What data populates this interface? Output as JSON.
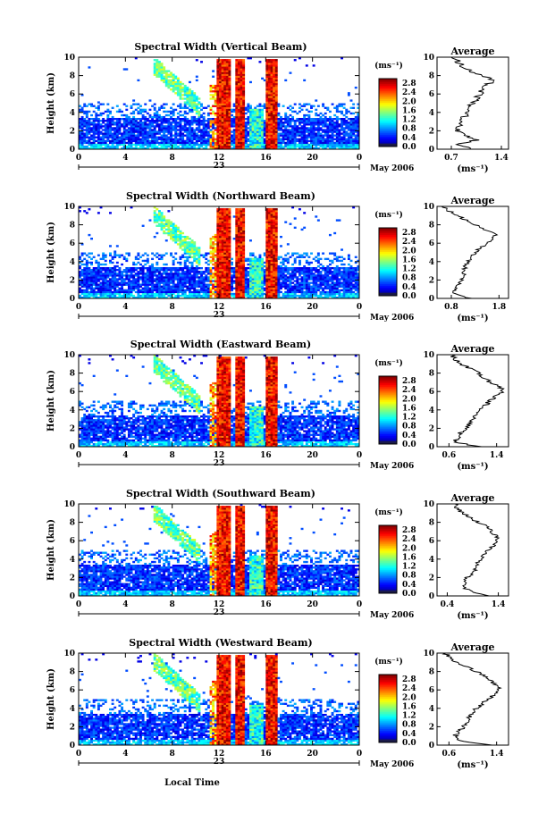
{
  "figure": {
    "xlabel": "Local Time",
    "date_label": "May 2006",
    "day_label": "23",
    "colorbar_unit": "(ms⁻¹)",
    "avg_unit": "(ms⁻¹)",
    "ylabel": "Height (km)"
  },
  "chart_data": [
    {
      "type": "heatmap",
      "title": "Spectral Width (Vertical Beam)",
      "avg_title": "Average",
      "x_ticks": [
        "0",
        "4",
        "8",
        "12",
        "16",
        "20",
        "0"
      ],
      "y_ticks": [
        "0",
        "2",
        "4",
        "6",
        "8",
        "10"
      ],
      "xlim": [
        0,
        24
      ],
      "ylim": [
        0,
        10
      ],
      "colorbar_ticks": [
        "0.0",
        "0.4",
        "0.8",
        "1.2",
        "1.6",
        "2.0",
        "2.4",
        "2.8"
      ],
      "clim": [
        0,
        3.0
      ],
      "avg_xticks": [
        "0.7",
        "1.4"
      ],
      "avg_xlim": [
        0.5,
        1.5
      ],
      "avg_profile": {
        "height": [
          0,
          0.5,
          1,
          1.5,
          2,
          2.5,
          3,
          3.5,
          4,
          4.5,
          5,
          5.5,
          6,
          6.5,
          7,
          7.5,
          8,
          8.5,
          9,
          9.5,
          10
        ],
        "value": [
          1.0,
          0.75,
          1.05,
          0.9,
          0.78,
          0.8,
          0.85,
          0.88,
          0.92,
          0.95,
          1.0,
          1.05,
          1.1,
          1.15,
          1.2,
          1.3,
          1.15,
          0.95,
          0.85,
          0.8,
          0.7
        ]
      }
    },
    {
      "type": "heatmap",
      "title": "Spectral Width (Northward Beam)",
      "avg_title": "Average",
      "x_ticks": [
        "0",
        "4",
        "8",
        "12",
        "16",
        "20",
        "0"
      ],
      "y_ticks": [
        "0",
        "2",
        "4",
        "6",
        "8",
        "10"
      ],
      "xlim": [
        0,
        24
      ],
      "ylim": [
        0,
        10
      ],
      "colorbar_ticks": [
        "0.0",
        "0.4",
        "0.8",
        "1.2",
        "1.6",
        "2.0",
        "2.4",
        "2.8"
      ],
      "clim": [
        0,
        3.0
      ],
      "avg_xticks": [
        "0.8",
        "1.8"
      ],
      "avg_xlim": [
        0.5,
        2.0
      ],
      "avg_profile": {
        "height": [
          0,
          0.5,
          1,
          1.5,
          2,
          2.5,
          3,
          3.5,
          4,
          4.5,
          5,
          5.5,
          6,
          6.5,
          7,
          7.5,
          8,
          8.5,
          9,
          9.5,
          10
        ],
        "value": [
          1.2,
          0.85,
          0.9,
          0.95,
          1.0,
          1.05,
          1.05,
          1.1,
          1.15,
          1.2,
          1.3,
          1.4,
          1.55,
          1.65,
          1.75,
          1.5,
          1.3,
          1.1,
          0.95,
          0.75,
          0.6
        ]
      }
    },
    {
      "type": "heatmap",
      "title": "Spectral Width (Eastward Beam)",
      "avg_title": "Average",
      "x_ticks": [
        "0",
        "4",
        "8",
        "12",
        "16",
        "20",
        "0"
      ],
      "y_ticks": [
        "0",
        "2",
        "4",
        "6",
        "8",
        "10"
      ],
      "xlim": [
        0,
        24
      ],
      "ylim": [
        0,
        10
      ],
      "colorbar_ticks": [
        "0.0",
        "0.4",
        "0.8",
        "1.2",
        "1.6",
        "2.0",
        "2.4",
        "2.8"
      ],
      "clim": [
        0,
        3.0
      ],
      "avg_xticks": [
        "0.6",
        "1.4"
      ],
      "avg_xlim": [
        0.4,
        1.6
      ],
      "avg_profile": {
        "height": [
          0,
          0.5,
          1,
          1.5,
          2,
          2.5,
          3,
          3.5,
          4,
          4.5,
          5,
          5.5,
          6,
          6.5,
          7,
          7.5,
          8,
          8.5,
          9,
          9.5,
          10
        ],
        "value": [
          1.1,
          0.7,
          0.75,
          0.8,
          0.88,
          0.95,
          1.0,
          1.05,
          1.1,
          1.2,
          1.3,
          1.4,
          1.5,
          1.45,
          1.3,
          1.2,
          1.1,
          0.95,
          0.8,
          0.7,
          0.65
        ]
      }
    },
    {
      "type": "heatmap",
      "title": "Spectral Width (Southward Beam)",
      "avg_title": "Average",
      "x_ticks": [
        "0",
        "4",
        "8",
        "12",
        "16",
        "20",
        "0"
      ],
      "y_ticks": [
        "0",
        "2",
        "4",
        "6",
        "8",
        "10"
      ],
      "xlim": [
        0,
        24
      ],
      "ylim": [
        0,
        10
      ],
      "colorbar_ticks": [
        "0.0",
        "0.4",
        "0.8",
        "1.2",
        "1.6",
        "2.0",
        "2.4",
        "2.8"
      ],
      "clim": [
        0,
        3.0
      ],
      "avg_xticks": [
        "0.4",
        "1.4"
      ],
      "avg_xlim": [
        0.2,
        1.6
      ],
      "avg_profile": {
        "height": [
          0,
          0.5,
          1,
          1.5,
          2,
          2.5,
          3,
          3.5,
          4,
          4.5,
          5,
          5.5,
          6,
          6.5,
          7,
          7.5,
          8,
          8.5,
          9,
          9.5,
          10
        ],
        "value": [
          1.2,
          0.85,
          0.7,
          0.75,
          0.8,
          0.9,
          0.95,
          1.0,
          1.05,
          1.1,
          1.2,
          1.3,
          1.4,
          1.35,
          1.25,
          1.2,
          1.0,
          0.85,
          0.7,
          0.6,
          0.55
        ]
      }
    },
    {
      "type": "heatmap",
      "title": "Spectral Width (Westward Beam)",
      "avg_title": "Average",
      "x_ticks": [
        "0",
        "4",
        "8",
        "12",
        "16",
        "20",
        "0"
      ],
      "y_ticks": [
        "0",
        "2",
        "4",
        "6",
        "8",
        "10"
      ],
      "xlim": [
        0,
        24
      ],
      "ylim": [
        0,
        10
      ],
      "colorbar_ticks": [
        "0.0",
        "0.4",
        "0.8",
        "1.2",
        "1.6",
        "2.0",
        "2.4",
        "2.8"
      ],
      "clim": [
        0,
        3.0
      ],
      "avg_xticks": [
        "0.6",
        "1.4"
      ],
      "avg_xlim": [
        0.4,
        1.6
      ],
      "avg_profile": {
        "height": [
          0,
          0.5,
          1,
          1.5,
          2,
          2.5,
          3,
          3.5,
          4,
          4.5,
          5,
          5.5,
          6,
          6.5,
          7,
          7.5,
          8,
          8.5,
          9,
          9.5,
          10
        ],
        "value": [
          1.3,
          0.75,
          0.7,
          0.78,
          0.85,
          0.9,
          0.95,
          1.0,
          1.05,
          1.15,
          1.25,
          1.35,
          1.45,
          1.4,
          1.3,
          1.2,
          1.05,
          0.9,
          0.75,
          0.6,
          0.55
        ]
      }
    }
  ]
}
